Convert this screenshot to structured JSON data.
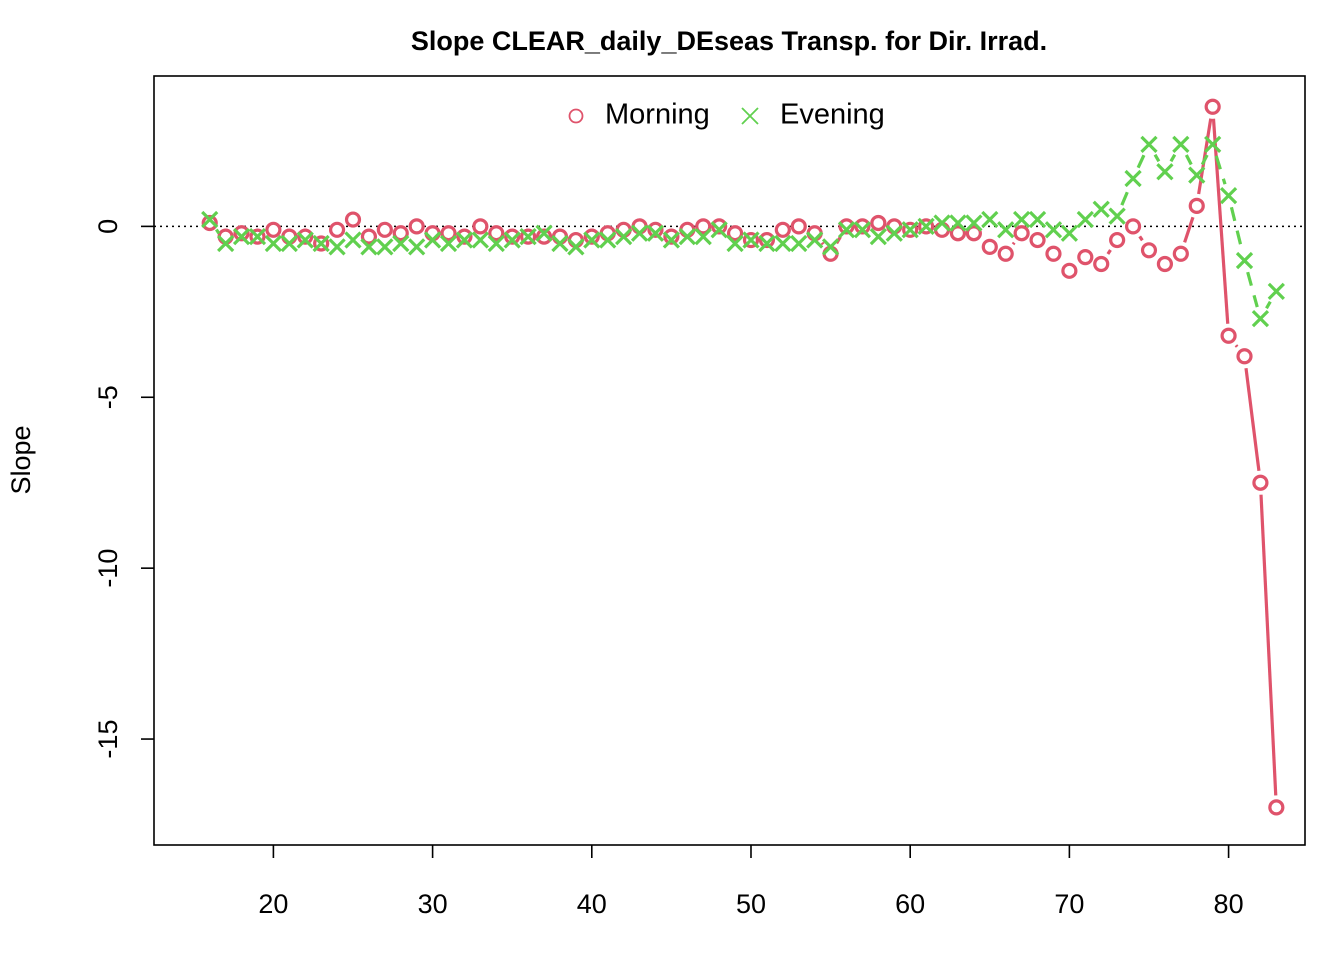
{
  "chart_data": {
    "type": "line",
    "title": "Slope CLEAR_daily_DEseas Transp. for Dir. Irrad.",
    "xlabel": "",
    "ylabel": "Slope",
    "xlim": [
      12.5,
      84.8
    ],
    "ylim": [
      -18.1,
      4.4
    ],
    "x_ticks": [
      20,
      30,
      40,
      50,
      60,
      70,
      80
    ],
    "y_ticks": [
      0,
      -5,
      -10,
      -15
    ],
    "reference_line": {
      "y": 0,
      "style": "dotted"
    },
    "legend_position": "top",
    "colors": {
      "Morning": "#DF536B",
      "Evening": "#61D04F"
    },
    "series": [
      {
        "name": "Morning",
        "marker": "circle",
        "line": "solid",
        "x": [
          16,
          17,
          18,
          19,
          20,
          21,
          22,
          23,
          24,
          25,
          26,
          27,
          28,
          29,
          30,
          31,
          32,
          33,
          34,
          35,
          36,
          37,
          38,
          39,
          40,
          41,
          42,
          43,
          44,
          45,
          46,
          47,
          48,
          49,
          50,
          51,
          52,
          53,
          54,
          55,
          56,
          57,
          58,
          59,
          60,
          61,
          62,
          63,
          64,
          65,
          66,
          67,
          68,
          69,
          70,
          71,
          72,
          73,
          74,
          75,
          76,
          77,
          78,
          79,
          80,
          81,
          82,
          83
        ],
        "values": [
          0.1,
          -0.3,
          -0.2,
          -0.3,
          -0.1,
          -0.3,
          -0.3,
          -0.5,
          -0.1,
          0.2,
          -0.3,
          -0.1,
          -0.2,
          0.0,
          -0.2,
          -0.2,
          -0.3,
          0.0,
          -0.2,
          -0.3,
          -0.3,
          -0.3,
          -0.3,
          -0.4,
          -0.3,
          -0.2,
          -0.1,
          0.0,
          -0.1,
          -0.3,
          -0.1,
          0.0,
          0.0,
          -0.2,
          -0.4,
          -0.4,
          -0.1,
          0.0,
          -0.2,
          -0.8,
          0.0,
          0.0,
          0.1,
          0.0,
          -0.1,
          0.0,
          -0.1,
          -0.2,
          -0.2,
          -0.6,
          -0.8,
          -0.2,
          -0.4,
          -0.8,
          -1.3,
          -0.9,
          -1.1,
          -0.4,
          0.0,
          -0.7,
          -1.1,
          -0.8,
          0.6,
          3.5,
          -3.2,
          -3.8,
          -7.5,
          -17.0
        ]
      },
      {
        "name": "Evening",
        "marker": "cross",
        "line": "dashed",
        "x": [
          16,
          17,
          18,
          19,
          20,
          21,
          22,
          23,
          24,
          25,
          26,
          27,
          28,
          29,
          30,
          31,
          32,
          33,
          34,
          35,
          36,
          37,
          38,
          39,
          40,
          41,
          42,
          43,
          44,
          45,
          46,
          47,
          48,
          49,
          50,
          51,
          52,
          53,
          54,
          55,
          56,
          57,
          58,
          59,
          60,
          61,
          62,
          63,
          64,
          65,
          66,
          67,
          68,
          69,
          70,
          71,
          72,
          73,
          74,
          75,
          76,
          77,
          78,
          79,
          80,
          81,
          82,
          83
        ],
        "values": [
          0.2,
          -0.5,
          -0.3,
          -0.3,
          -0.5,
          -0.5,
          -0.4,
          -0.5,
          -0.6,
          -0.4,
          -0.6,
          -0.6,
          -0.5,
          -0.6,
          -0.4,
          -0.5,
          -0.4,
          -0.4,
          -0.5,
          -0.4,
          -0.3,
          -0.2,
          -0.5,
          -0.6,
          -0.4,
          -0.4,
          -0.3,
          -0.2,
          -0.2,
          -0.4,
          -0.3,
          -0.3,
          -0.1,
          -0.5,
          -0.4,
          -0.5,
          -0.5,
          -0.5,
          -0.4,
          -0.6,
          -0.1,
          -0.1,
          -0.3,
          -0.2,
          -0.1,
          0.0,
          0.1,
          0.1,
          0.1,
          0.2,
          -0.1,
          0.2,
          0.2,
          -0.1,
          -0.2,
          0.2,
          0.5,
          0.3,
          1.4,
          2.4,
          1.6,
          2.4,
          1.5,
          2.4,
          0.9,
          -1.0,
          -2.7,
          -1.9
        ]
      }
    ]
  }
}
